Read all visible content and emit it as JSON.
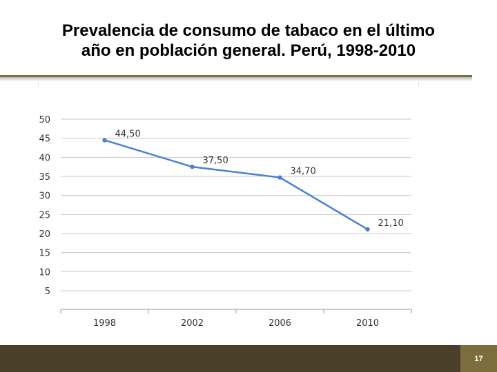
{
  "slide": {
    "title_line1": "Prevalencia de consumo de tabaco en el último",
    "title_line2": "año en población general. Perú, 1998-2010",
    "page_number": "17"
  },
  "colors": {
    "line": "#4a7fd6",
    "grid": "#c8c8c8",
    "accent": "#7d6d3c",
    "footer": "#4a4029"
  },
  "chart_data": {
    "type": "line",
    "categories": [
      "1998",
      "2002",
      "2006",
      "2010"
    ],
    "values": [
      44.5,
      37.5,
      34.7,
      21.1
    ],
    "data_labels": [
      "44,50",
      "37,50",
      "34,70",
      "21,10"
    ],
    "y_ticks": [
      5,
      10,
      15,
      20,
      25,
      30,
      35,
      40,
      45,
      50
    ],
    "ylim": [
      0,
      50
    ],
    "grid": true,
    "legend": "none"
  }
}
